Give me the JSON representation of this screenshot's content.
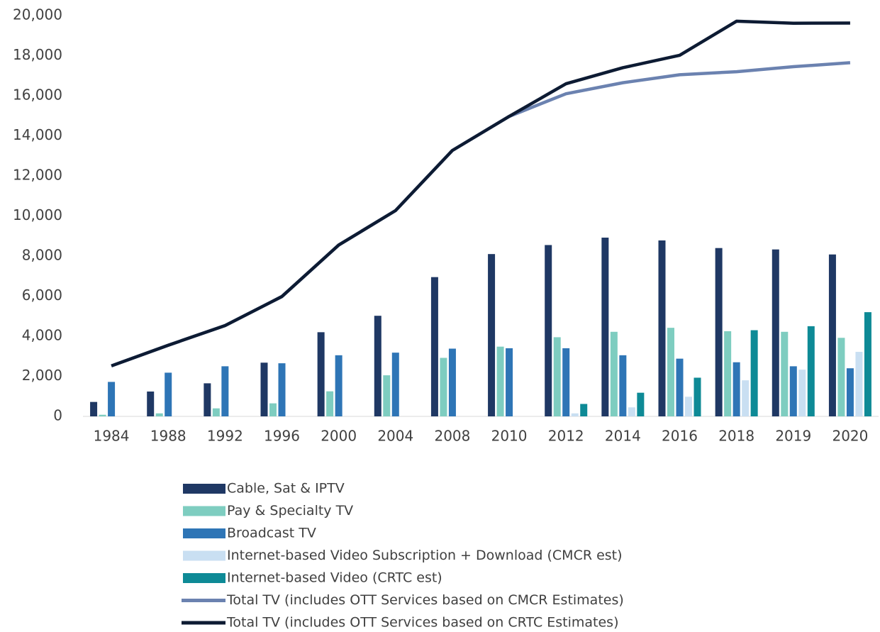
{
  "chart_data": {
    "type": "bar_line",
    "categories": [
      "1984",
      "1988",
      "1992",
      "1996",
      "2000",
      "2004",
      "2008",
      "2010",
      "2012",
      "2014",
      "2016",
      "2018",
      "2019",
      "2020"
    ],
    "series": [
      {
        "name": "Cable, Sat & IPTV",
        "type": "bar",
        "color": "#1f3864",
        "values": [
          720,
          1240,
          1650,
          2680,
          4200,
          5020,
          6950,
          8100,
          8550,
          8920,
          8780,
          8400,
          8330,
          8080
        ]
      },
      {
        "name": "Pay & Specialty TV",
        "type": "bar",
        "color": "#7ecdc0",
        "values": [
          80,
          150,
          400,
          650,
          1250,
          2050,
          2920,
          3480,
          3950,
          4220,
          4420,
          4250,
          4220,
          3920
        ]
      },
      {
        "name": "Broadcast TV",
        "type": "bar",
        "color": "#2e75b6",
        "values": [
          1720,
          2180,
          2500,
          2650,
          3050,
          3180,
          3380,
          3400,
          3400,
          3050,
          2880,
          2700,
          2500,
          2400
        ]
      },
      {
        "name": "Internet-based Video Subscription + Download (CMCR est)",
        "type": "bar",
        "color": "#c9dff2",
        "values": [
          null,
          null,
          null,
          null,
          null,
          null,
          null,
          null,
          150,
          450,
          980,
          1800,
          2330,
          3220
        ]
      },
      {
        "name": "Internet-based Video (CRTC est)",
        "type": "bar",
        "color": "#0e8a96",
        "values": [
          null,
          null,
          null,
          null,
          null,
          null,
          null,
          null,
          620,
          1180,
          1930,
          4300,
          4500,
          5200
        ]
      },
      {
        "name": "Total TV (includes OTT Services based on CMCR Estimates)",
        "type": "line",
        "color": "#6b82b0",
        "values": [
          2520,
          3550,
          4530,
          5980,
          8550,
          10270,
          13270,
          14970,
          16100,
          16650,
          17050,
          17200,
          17450,
          17650
        ]
      },
      {
        "name": "Total TV (includes OTT Services based on CRTC Estimates)",
        "type": "line",
        "color": "#0d1b33",
        "values": [
          2520,
          3550,
          4530,
          5980,
          8550,
          10270,
          13270,
          14970,
          16600,
          17400,
          18020,
          19720,
          19620,
          19630
        ]
      }
    ],
    "ylim": [
      0,
      20000
    ],
    "yticks": [
      0,
      {
        "value": 2000,
        "label": "2,000"
      },
      {
        "value": 4000,
        "label": "4,000"
      },
      {
        "value": 6000,
        "label": "6,000"
      },
      {
        "value": 8000,
        "label": "8,000"
      },
      {
        "value": 10000,
        "label": "10,000"
      },
      {
        "value": 12000,
        "label": "12,000"
      },
      {
        "value": 14000,
        "label": "14,000"
      },
      {
        "value": 16000,
        "label": "16,000"
      },
      {
        "value": 18000,
        "label": "18,000"
      },
      {
        "value": 20000,
        "label": "20,000"
      }
    ],
    "grid": false
  }
}
